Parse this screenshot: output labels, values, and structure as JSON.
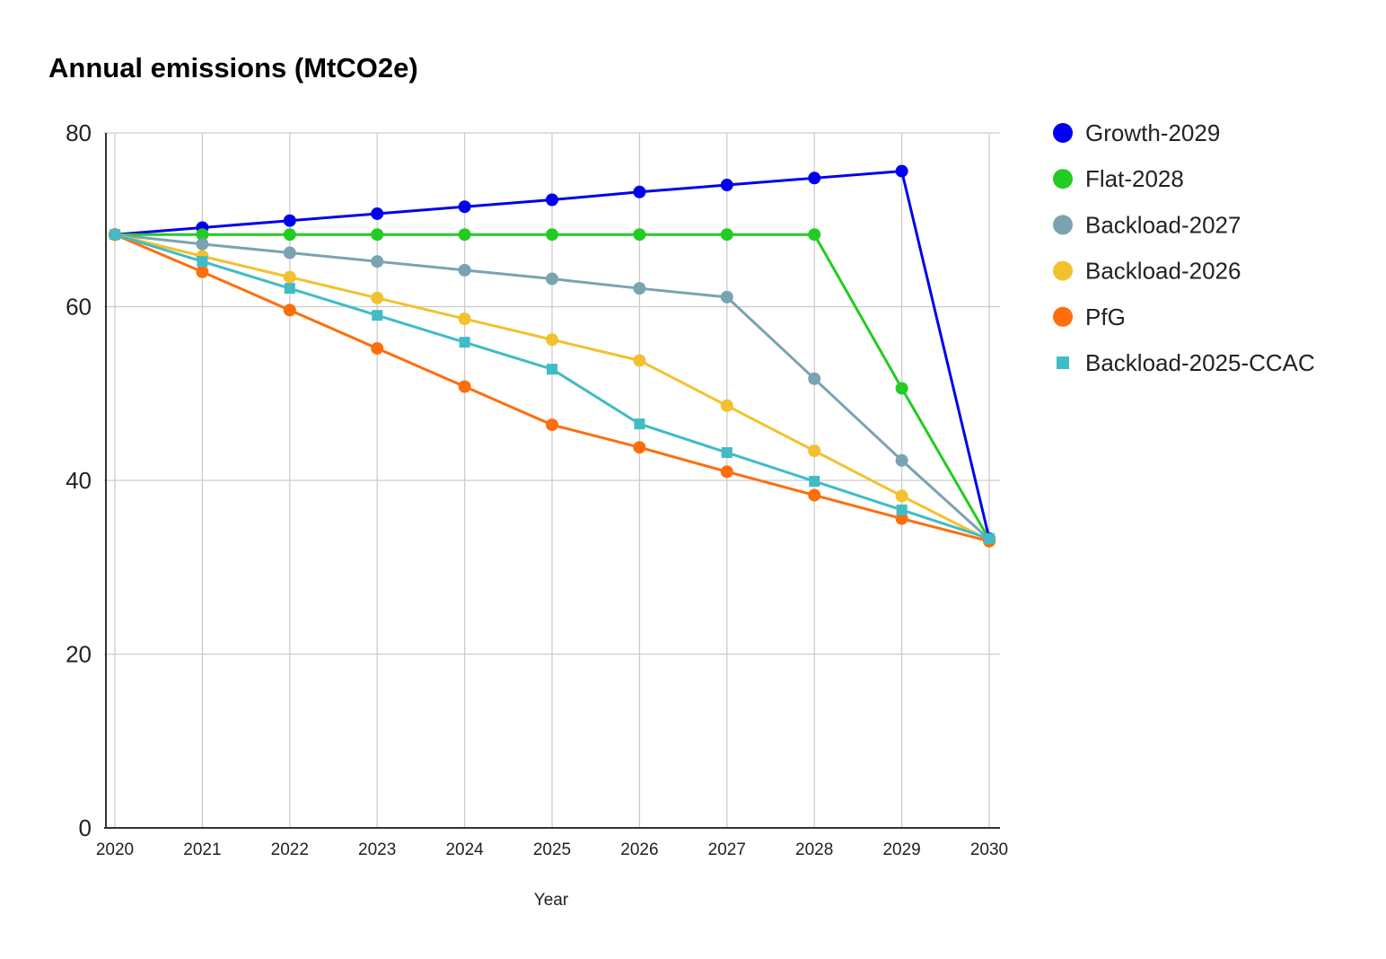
{
  "chart_data": {
    "type": "line",
    "title": "Annual emissions (MtCO2e)",
    "xlabel": "Year",
    "ylabel": "",
    "x": [
      "2020",
      "2021",
      "2022",
      "2023",
      "2024",
      "2025",
      "2026",
      "2027",
      "2028",
      "2029",
      "2030"
    ],
    "ylim": [
      0,
      80
    ],
    "yticks": [
      "0",
      "20",
      "40",
      "60",
      "80"
    ],
    "grid": true,
    "legend_position": "right",
    "series": [
      {
        "name": "Growth-2029",
        "color": "#0000ee",
        "marker": "circle",
        "values": [
          68.3,
          69.1,
          69.9,
          70.7,
          71.5,
          72.3,
          73.2,
          74.0,
          74.8,
          75.6,
          33.3
        ]
      },
      {
        "name": "Flat-2028",
        "color": "#22cc22",
        "marker": "circle",
        "values": [
          68.3,
          68.3,
          68.3,
          68.3,
          68.3,
          68.3,
          68.3,
          68.3,
          68.3,
          50.6,
          33.2
        ]
      },
      {
        "name": "Backload-2027",
        "color": "#7aa3b0",
        "marker": "circle",
        "values": [
          68.3,
          67.2,
          66.2,
          65.2,
          64.2,
          63.2,
          62.1,
          61.1,
          51.7,
          42.3,
          33.2
        ]
      },
      {
        "name": "Backload-2026",
        "color": "#f2c12e",
        "marker": "circle",
        "values": [
          68.3,
          65.8,
          63.4,
          61.0,
          58.6,
          56.2,
          53.8,
          48.6,
          43.4,
          38.2,
          33.1
        ]
      },
      {
        "name": "PfG",
        "color": "#ff6d0c",
        "marker": "circle",
        "values": [
          68.3,
          64.0,
          59.6,
          55.2,
          50.8,
          46.4,
          43.8,
          41.0,
          38.3,
          35.6,
          33.0
        ]
      },
      {
        "name": "Backload-2025-CCAC",
        "color": "#3fbcc6",
        "marker": "square",
        "values": [
          68.3,
          65.2,
          62.1,
          59.0,
          55.9,
          52.8,
          46.5,
          43.2,
          39.9,
          36.6,
          33.3
        ]
      }
    ]
  }
}
